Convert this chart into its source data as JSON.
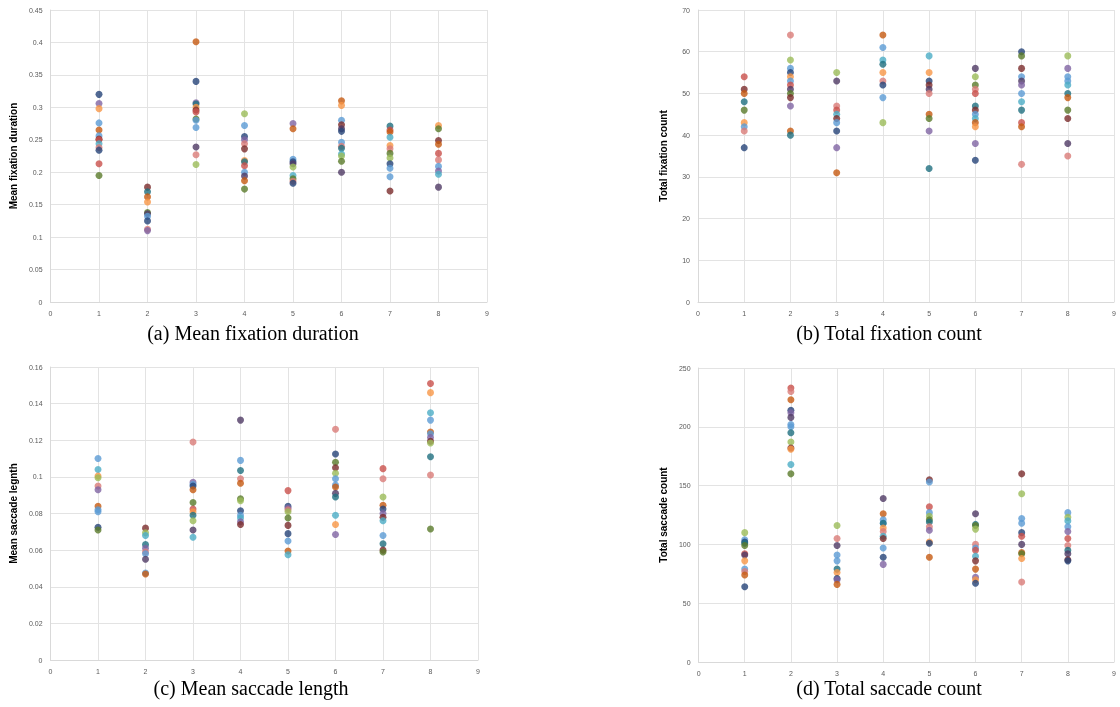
{
  "chart_data": [
    {
      "type": "scatter",
      "title": "(a) Mean fixation duration",
      "ylabel": "Mean fixation duration",
      "xlim": [
        0,
        9
      ],
      "xticks": [
        0,
        1,
        2,
        3,
        4,
        5,
        6,
        7,
        8,
        9
      ],
      "ylim": [
        0,
        0.45
      ],
      "yticks": [
        0,
        0.05,
        0.1,
        0.15,
        0.2,
        0.25,
        0.3,
        0.35,
        0.4,
        0.45
      ],
      "grid": true,
      "marker": "circle",
      "x": [
        1,
        1,
        1,
        1,
        1,
        1,
        1,
        1,
        1,
        1,
        1,
        1,
        1,
        2,
        2,
        2,
        2,
        2,
        2,
        2,
        2,
        2,
        2,
        3,
        3,
        3,
        3,
        3,
        3,
        3,
        3,
        3,
        3,
        3,
        3,
        3,
        4,
        4,
        4,
        4,
        4,
        4,
        4,
        4,
        4,
        4,
        4,
        4,
        4,
        5,
        5,
        5,
        5,
        5,
        5,
        5,
        5,
        5,
        5,
        6,
        6,
        6,
        6,
        6,
        6,
        6,
        6,
        6,
        6,
        6,
        6,
        6,
        7,
        7,
        7,
        7,
        7,
        7,
        7,
        7,
        7,
        7,
        7,
        7,
        8,
        8,
        8,
        8,
        8,
        8,
        8,
        8,
        8,
        8
      ],
      "values": [
        0.32,
        0.306,
        0.298,
        0.276,
        0.265,
        0.256,
        0.251,
        0.25,
        0.244,
        0.238,
        0.234,
        0.213,
        0.195,
        0.177,
        0.17,
        0.162,
        0.154,
        0.138,
        0.136,
        0.132,
        0.125,
        0.112,
        0.11,
        0.401,
        0.34,
        0.307,
        0.305,
        0.3,
        0.296,
        0.293,
        0.282,
        0.28,
        0.269,
        0.239,
        0.227,
        0.212,
        0.29,
        0.272,
        0.255,
        0.25,
        0.244,
        0.236,
        0.218,
        0.216,
        0.21,
        0.2,
        0.194,
        0.187,
        0.174,
        0.275,
        0.267,
        0.22,
        0.216,
        0.213,
        0.208,
        0.195,
        0.19,
        0.186,
        0.183,
        0.31,
        0.303,
        0.28,
        0.273,
        0.267,
        0.263,
        0.246,
        0.24,
        0.237,
        0.228,
        0.225,
        0.217,
        0.2,
        0.271,
        0.265,
        0.262,
        0.254,
        0.241,
        0.236,
        0.229,
        0.222,
        0.213,
        0.206,
        0.193,
        0.171,
        0.272,
        0.267,
        0.249,
        0.243,
        0.229,
        0.219,
        0.209,
        0.202,
        0.197,
        0.177
      ],
      "colors": [
        "#264478",
        "#8064a2",
        "#f79646",
        "#5b9bd5",
        "#c55a11",
        "#5b9bd5",
        "#7b2c2c",
        "#c9504b",
        "#4bacc6",
        "#d97c78",
        "#264478",
        "#c9504b",
        "#5a7a2a",
        "#7b2c2c",
        "#1f6f80",
        "#c55a11",
        "#f79646",
        "#5a7a2a",
        "#4f3a64",
        "#5b9bd5",
        "#264478",
        "#d97c78",
        "#8064a2",
        "#c55a11",
        "#264478",
        "#8064a2",
        "#1f6f80",
        "#f79646",
        "#7b2c2c",
        "#c9504b",
        "#5a7a2a",
        "#5b9bd5",
        "#5b9bd5",
        "#4f3a64",
        "#d97c78",
        "#9bbb59",
        "#9bbb59",
        "#5b9bd5",
        "#264478",
        "#8064a2",
        "#d97c78",
        "#7b2c2c",
        "#f79646",
        "#1f6f80",
        "#c9504b",
        "#5b9bd5",
        "#4f3a64",
        "#c55a11",
        "#5a7a2a",
        "#8064a2",
        "#c55a11",
        "#5b9bd5",
        "#264478",
        "#4f3a64",
        "#9bbb59",
        "#4bacc6",
        "#5a7a2a",
        "#d97c78",
        "#264478",
        "#c55a11",
        "#f79646",
        "#5b9bd5",
        "#7b2c2c",
        "#4f3a64",
        "#264478",
        "#5b9bd5",
        "#d97c78",
        "#1f6f80",
        "#4bacc6",
        "#9bbb59",
        "#5a7a2a",
        "#4f3a64",
        "#1f6f80",
        "#c9504b",
        "#c55a11",
        "#4bacc6",
        "#f79646",
        "#d97c78",
        "#5a7a2a",
        "#9bbb59",
        "#264478",
        "#5b9bd5",
        "#5b9bd5",
        "#7b2c2c",
        "#f79646",
        "#5a7a2a",
        "#7b2c2c",
        "#c55a11",
        "#c9504b",
        "#d97c78",
        "#5b9bd5",
        "#8064a2",
        "#4bacc6",
        "#4f3a64"
      ]
    },
    {
      "type": "scatter",
      "title": "(b) Total fixation count",
      "ylabel": "Total fixation count",
      "xlim": [
        0,
        9
      ],
      "xticks": [
        0,
        1,
        2,
        3,
        4,
        5,
        6,
        7,
        8,
        9
      ],
      "ylim": [
        0,
        70
      ],
      "yticks": [
        0,
        10,
        20,
        30,
        40,
        50,
        60,
        70
      ],
      "grid": true,
      "marker": "circle",
      "x": [
        1,
        1,
        1,
        1,
        1,
        1,
        1,
        1,
        1,
        2,
        2,
        2,
        2,
        2,
        2,
        2,
        2,
        2,
        2,
        2,
        2,
        2,
        3,
        3,
        3,
        3,
        3,
        3,
        3,
        3,
        3,
        3,
        4,
        4,
        4,
        4,
        4,
        4,
        4,
        4,
        4,
        5,
        5,
        5,
        5,
        5,
        5,
        5,
        5,
        5,
        5,
        6,
        6,
        6,
        6,
        6,
        6,
        6,
        6,
        6,
        6,
        6,
        6,
        6,
        7,
        7,
        7,
        7,
        7,
        7,
        7,
        7,
        7,
        7,
        7,
        7,
        8,
        8,
        8,
        8,
        8,
        8,
        8,
        8,
        8,
        8,
        8
      ],
      "values": [
        54,
        51,
        50,
        48,
        46,
        43,
        42,
        41,
        37,
        64,
        58,
        56,
        55,
        54,
        53,
        52,
        51,
        50,
        49,
        47,
        41,
        40,
        55,
        53,
        47,
        46,
        45,
        44,
        43,
        41,
        37,
        31,
        64,
        61,
        58,
        57,
        55,
        53,
        52,
        49,
        43,
        59,
        55,
        53,
        52,
        51,
        50,
        45,
        44,
        41,
        32,
        56,
        54,
        52,
        51,
        50,
        47,
        46,
        45,
        44,
        43,
        42,
        38,
        34,
        60,
        59,
        56,
        54,
        53,
        52,
        50,
        48,
        46,
        43,
        42,
        33,
        59,
        56,
        54,
        53,
        52,
        50,
        49,
        46,
        44,
        38,
        35
      ],
      "colors": [
        "#c9504b",
        "#7b2c2c",
        "#c55a11",
        "#1f6f80",
        "#5a7a2a",
        "#f79646",
        "#5b9bd5",
        "#d97c78",
        "#264478",
        "#d97c78",
        "#9bbb59",
        "#5b9bd5",
        "#264478",
        "#f79646",
        "#5b9bd5",
        "#c9504b",
        "#4f3a64",
        "#5a7a2a",
        "#7b2c2c",
        "#8064a2",
        "#c55a11",
        "#1f6f80",
        "#9bbb59",
        "#4f3a64",
        "#d97c78",
        "#c9504b",
        "#4bacc6",
        "#7b2c2c",
        "#5b9bd5",
        "#264478",
        "#8064a2",
        "#c55a11",
        "#c55a11",
        "#5b9bd5",
        "#4bacc6",
        "#1f6f80",
        "#f79646",
        "#d97c78",
        "#264478",
        "#5b9bd5",
        "#9bbb59",
        "#4bacc6",
        "#f79646",
        "#264478",
        "#7b2c2c",
        "#4f3a64",
        "#d97c78",
        "#c55a11",
        "#5a7a2a",
        "#8064a2",
        "#1f6f80",
        "#4f3a64",
        "#9bbb59",
        "#5a7a2a",
        "#d97c78",
        "#c9504b",
        "#1f6f80",
        "#7b2c2c",
        "#5b9bd5",
        "#4bacc6",
        "#c55a11",
        "#f79646",
        "#8064a2",
        "#264478",
        "#264478",
        "#5a7a2a",
        "#7b2c2c",
        "#5b9bd5",
        "#4f3a64",
        "#8064a2",
        "#5b9bd5",
        "#4bacc6",
        "#1f6f80",
        "#c9504b",
        "#c55a11",
        "#d97c78",
        "#9bbb59",
        "#8064a2",
        "#5b9bd5",
        "#5b9bd5",
        "#4bacc6",
        "#1f6f80",
        "#c55a11",
        "#5a7a2a",
        "#7b2c2c",
        "#4f3a64",
        "#d97c78"
      ]
    },
    {
      "type": "scatter",
      "title": "(c) Mean saccade length",
      "ylabel": "Mean saccade legnth",
      "xlim": [
        0,
        9
      ],
      "xticks": [
        0,
        1,
        2,
        3,
        4,
        5,
        6,
        7,
        8,
        9
      ],
      "ylim": [
        0,
        0.16
      ],
      "yticks": [
        0,
        0.02,
        0.04,
        0.06,
        0.08,
        0.1,
        0.12,
        0.14,
        0.16
      ],
      "grid": true,
      "marker": "circle",
      "x": [
        1,
        1,
        1,
        1,
        1,
        1,
        1,
        1,
        1,
        1,
        1,
        2,
        2,
        2,
        2,
        2,
        2,
        2,
        2,
        2,
        2,
        3,
        3,
        3,
        3,
        3,
        3,
        3,
        3,
        3,
        3,
        3,
        3,
        4,
        4,
        4,
        4,
        4,
        4,
        4,
        4,
        4,
        4,
        4,
        4,
        5,
        5,
        5,
        5,
        5,
        5,
        5,
        5,
        5,
        5,
        5,
        6,
        6,
        6,
        6,
        6,
        6,
        6,
        6,
        6,
        6,
        6,
        6,
        6,
        7,
        7,
        7,
        7,
        7,
        7,
        7,
        7,
        7,
        7,
        7,
        7,
        8,
        8,
        8,
        8,
        8,
        8,
        8,
        8,
        8,
        8,
        8,
        8
      ],
      "values": [
        0.11,
        0.104,
        0.1005,
        0.0995,
        0.095,
        0.093,
        0.084,
        0.082,
        0.081,
        0.0725,
        0.071,
        0.072,
        0.0695,
        0.068,
        0.063,
        0.061,
        0.059,
        0.058,
        0.055,
        0.0475,
        0.047,
        0.119,
        0.097,
        0.096,
        0.095,
        0.093,
        0.086,
        0.0825,
        0.081,
        0.079,
        0.076,
        0.071,
        0.067,
        0.131,
        0.109,
        0.1035,
        0.099,
        0.0965,
        0.088,
        0.087,
        0.0815,
        0.079,
        0.0775,
        0.0755,
        0.074,
        0.0925,
        0.084,
        0.083,
        0.082,
        0.081,
        0.0775,
        0.0735,
        0.069,
        0.065,
        0.0595,
        0.0575,
        0.126,
        0.1125,
        0.108,
        0.105,
        0.102,
        0.099,
        0.0955,
        0.0945,
        0.091,
        0.089,
        0.079,
        0.074,
        0.0685,
        0.1045,
        0.099,
        0.089,
        0.0845,
        0.0825,
        0.08,
        0.078,
        0.076,
        0.068,
        0.0635,
        0.06,
        0.059,
        0.151,
        0.146,
        0.135,
        0.131,
        0.1245,
        0.1235,
        0.1215,
        0.1195,
        0.1185,
        0.111,
        0.101,
        0.0715
      ],
      "colors": [
        "#5b9bd5",
        "#4bacc6",
        "#f79646",
        "#9bbb59",
        "#d97c78",
        "#8064a2",
        "#c55a11",
        "#5b9bd5",
        "#5b9bd5",
        "#264478",
        "#5a7a2a",
        "#7b2c2c",
        "#9bbb59",
        "#4bacc6",
        "#1f6f80",
        "#8064a2",
        "#d97c78",
        "#5b9bd5",
        "#4f3a64",
        "#5b9bd5",
        "#c55a11",
        "#d97c78",
        "#8064a2",
        "#5b9bd5",
        "#264478",
        "#c55a11",
        "#5a7a2a",
        "#c9504b",
        "#f79646",
        "#1f6f80",
        "#9bbb59",
        "#4f3a64",
        "#4bacc6",
        "#4f3a64",
        "#5b9bd5",
        "#1f6f80",
        "#d97c78",
        "#c55a11",
        "#5a7a2a",
        "#9bbb59",
        "#264478",
        "#5b9bd5",
        "#4bacc6",
        "#8064a2",
        "#7b2c2c",
        "#c9504b",
        "#264478",
        "#8064a2",
        "#d97c78",
        "#9bbb59",
        "#5a7a2a",
        "#7b2c2c",
        "#264478",
        "#5b9bd5",
        "#c55a11",
        "#4bacc6",
        "#d97c78",
        "#264478",
        "#5a7a2a",
        "#7b2c2c",
        "#9bbb59",
        "#5b9bd5",
        "#5b9bd5",
        "#c55a11",
        "#4f3a64",
        "#1f6f80",
        "#4bacc6",
        "#f79646",
        "#8064a2",
        "#c9504b",
        "#d97c78",
        "#9bbb59",
        "#c55a11",
        "#264478",
        "#8064a2",
        "#7b2c2c",
        "#4bacc6",
        "#5b9bd5",
        "#1f6f80",
        "#7b2c2c",
        "#5a7a2a",
        "#c9504b",
        "#f79646",
        "#4bacc6",
        "#5b9bd5",
        "#c55a11",
        "#5b9bd5",
        "#8064a2",
        "#7b2c2c",
        "#9bbb59",
        "#1f6f80",
        "#d97c78",
        "#5a7a2a"
      ]
    },
    {
      "type": "scatter",
      "title": "(d) Total saccade count",
      "ylabel": "Total saccade count",
      "xlim": [
        0,
        9
      ],
      "xticks": [
        0,
        1,
        2,
        3,
        4,
        5,
        6,
        7,
        8,
        9
      ],
      "ylim": [
        0,
        250
      ],
      "yticks": [
        0,
        50,
        100,
        150,
        200,
        250
      ],
      "grid": true,
      "marker": "circle",
      "x": [
        1,
        1,
        1,
        1,
        1,
        1,
        1,
        1,
        1,
        1,
        1,
        1,
        2,
        2,
        2,
        2,
        2,
        2,
        2,
        2,
        2,
        2,
        2,
        2,
        2,
        2,
        3,
        3,
        3,
        3,
        3,
        3,
        3,
        3,
        3,
        3,
        4,
        4,
        4,
        4,
        4,
        4,
        4,
        4,
        4,
        4,
        4,
        4,
        5,
        5,
        5,
        5,
        5,
        5,
        5,
        5,
        5,
        5,
        5,
        5,
        6,
        6,
        6,
        6,
        6,
        6,
        6,
        6,
        6,
        6,
        6,
        6,
        6,
        7,
        7,
        7,
        7,
        7,
        7,
        7,
        7,
        7,
        7,
        7,
        8,
        8,
        8,
        8,
        8,
        8,
        8,
        8,
        8,
        8,
        8
      ],
      "values": [
        110,
        104,
        102,
        101,
        99,
        92,
        91,
        86,
        79,
        77,
        74,
        64,
        233,
        230,
        223,
        214,
        212,
        208,
        202,
        200,
        195,
        187,
        182,
        181,
        168,
        160,
        116,
        105,
        99,
        91,
        86,
        79,
        76,
        71,
        70,
        66,
        139,
        126,
        121,
        118,
        118,
        114,
        111,
        107,
        105,
        97,
        89,
        83,
        155,
        153,
        132,
        127,
        124,
        121,
        119,
        115,
        112,
        102,
        101,
        89,
        126,
        117,
        116,
        113,
        100,
        97,
        95,
        90,
        86,
        79,
        72,
        70,
        67,
        160,
        143,
        122,
        118,
        110,
        107,
        100,
        93,
        92,
        88,
        68,
        127,
        123,
        120,
        115,
        111,
        105,
        99,
        95,
        92,
        87,
        86
      ],
      "colors": [
        "#9bbb59",
        "#5b9bd5",
        "#264478",
        "#1f6f80",
        "#5a7a2a",
        "#c9504b",
        "#4f3a64",
        "#f79646",
        "#5b9bd5",
        "#d97c78",
        "#c55a11",
        "#264478",
        "#c9504b",
        "#d97c78",
        "#c55a11",
        "#264478",
        "#8064a2",
        "#4f3a64",
        "#5b9bd5",
        "#5b9bd5",
        "#1f6f80",
        "#9bbb59",
        "#7b2c2c",
        "#f79646",
        "#4bacc6",
        "#5a7a2a",
        "#9bbb59",
        "#d97c78",
        "#4f3a64",
        "#5b9bd5",
        "#5b9bd5",
        "#1f6f80",
        "#f79646",
        "#264478",
        "#8064a2",
        "#c55a11",
        "#4f3a64",
        "#c55a11",
        "#5b9bd5",
        "#5b9bd5",
        "#1f6f80",
        "#f79646",
        "#d97c78",
        "#4bacc6",
        "#7b2c2c",
        "#5b9bd5",
        "#264478",
        "#8064a2",
        "#7b2c2c",
        "#5b9bd5",
        "#c9504b",
        "#5b9bd5",
        "#9bbb59",
        "#5a7a2a",
        "#1f6f80",
        "#d97c78",
        "#8064a2",
        "#f79646",
        "#264478",
        "#c55a11",
        "#4f3a64",
        "#1f6f80",
        "#5a7a2a",
        "#9bbb59",
        "#d97c78",
        "#5b9bd5",
        "#c9504b",
        "#4bacc6",
        "#7b2c2c",
        "#c55a11",
        "#8064a2",
        "#f79646",
        "#264478",
        "#7b2c2c",
        "#9bbb59",
        "#5b9bd5",
        "#5b9bd5",
        "#264478",
        "#c9504b",
        "#4f3a64",
        "#c55a11",
        "#5a7a2a",
        "#f79646",
        "#d97c78",
        "#5b9bd5",
        "#9bbb59",
        "#4bacc6",
        "#5b9bd5",
        "#8064a2",
        "#c9504b",
        "#d97c78",
        "#1f6f80",
        "#4f3a64",
        "#7b2c2c",
        "#264478"
      ]
    }
  ]
}
